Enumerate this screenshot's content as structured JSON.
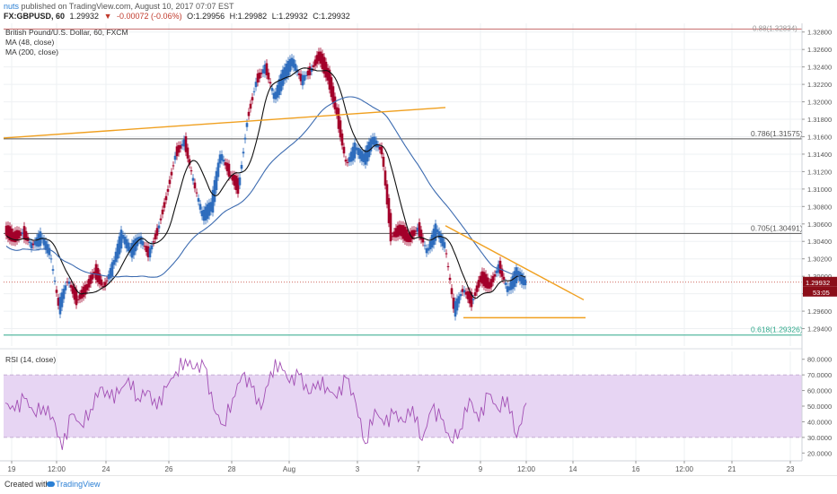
{
  "header": {
    "author": "nuts",
    "published_text": "published on TradingView.com, August 10, 2017 07:07 EST",
    "symbol": "FX:GBPUSD, 60",
    "last": "1.29932",
    "change_arrow": "▼",
    "change": "-0.00072 (-0.06%)",
    "open": "O:1.29956",
    "high": "H:1.29982",
    "low": "L:1.29932",
    "close": "C:1.29932"
  },
  "legend": {
    "title": "British Pound/U.S. Dollar, 60, FXCM",
    "ma48": "MA (48, close)",
    "ma200": "MA (200, close)",
    "rsi": "RSI (14, close)"
  },
  "footer": {
    "created": "Created with",
    "brand": "TradingView"
  },
  "colors": {
    "up": "#2f6dbd",
    "down": "#a3002a",
    "ma48": "#111111",
    "ma200": "#3c6bb0",
    "trend": "#f0a020",
    "rsi": "#a24fb4",
    "rsi_band": "#e7d5f3",
    "fib": "#555555",
    "fib618": "#2ea88a",
    "price_tag": "#8b0e19"
  },
  "chart_data": {
    "type": "line",
    "ylim": [
      1.292,
      1.329
    ],
    "yticks": [
      "1.32800",
      "1.32600",
      "1.32400",
      "1.32200",
      "1.32000",
      "1.31800",
      "1.31600",
      "1.31400",
      "1.31200",
      "1.31000",
      "1.30800",
      "1.30600",
      "1.30400",
      "1.30200",
      "1.30000",
      "1.29800",
      "1.29600",
      "1.29400"
    ],
    "x_labels": [
      "19",
      "12:00",
      "24",
      "26",
      "28",
      "Aug",
      "3",
      "7",
      "9",
      "12:00",
      "14",
      "16",
      "12:00",
      "21",
      "23"
    ],
    "price_path": [
      [
        "19",
        1.3052
      ],
      [
        "19",
        1.3043
      ],
      [
        "19",
        1.305
      ],
      [
        "19",
        1.3035
      ],
      [
        "19",
        1.3046
      ],
      [
        "19",
        1.3028
      ],
      [
        "12:00",
        1.2965
      ],
      [
        "12:00",
        1.2996
      ],
      [
        "12:00",
        1.2972
      ],
      [
        "12:00",
        1.2984
      ],
      [
        "12:00",
        1.3005
      ],
      [
        "24",
        1.2987
      ],
      [
        "24",
        1.3012
      ],
      [
        "24",
        1.3048
      ],
      [
        "24",
        1.303
      ],
      [
        "24",
        1.3045
      ],
      [
        "26",
        1.3025
      ],
      [
        "26",
        1.3052
      ],
      [
        "26",
        1.3092
      ],
      [
        "26",
        1.314
      ],
      [
        "26",
        1.3155
      ],
      [
        "26",
        1.3108
      ],
      [
        "26",
        1.307
      ],
      [
        "28",
        1.3082
      ],
      [
        "28",
        1.314
      ],
      [
        "28",
        1.3118
      ],
      [
        "28",
        1.31
      ],
      [
        "Aug",
        1.318
      ],
      [
        "Aug",
        1.3224
      ],
      [
        "Aug",
        1.324
      ],
      [
        "Aug",
        1.3205
      ],
      [
        "Aug",
        1.3232
      ],
      [
        "3",
        1.3248
      ],
      [
        "3",
        1.3225
      ],
      [
        "3",
        1.3235
      ],
      [
        "3",
        1.3252
      ],
      [
        "3",
        1.3228
      ],
      [
        "3",
        1.3185
      ],
      [
        "3",
        1.3128
      ],
      [
        "3",
        1.3148
      ],
      [
        "3",
        1.3136
      ],
      [
        "3",
        1.3158
      ],
      [
        "3",
        1.3142
      ],
      [
        "7",
        1.3045
      ],
      [
        "7",
        1.3052
      ],
      [
        "7",
        1.3042
      ],
      [
        "7",
        1.3055
      ],
      [
        "7",
        1.3028
      ],
      [
        "7",
        1.3055
      ],
      [
        "7",
        1.3035
      ],
      [
        "9",
        1.2962
      ],
      [
        "9",
        1.2985
      ],
      [
        "9",
        1.297
      ],
      [
        "9",
        1.2998
      ],
      [
        "9",
        1.2988
      ],
      [
        "9",
        1.3012
      ],
      [
        "12:00",
        1.2984
      ],
      [
        "12:00",
        1.3005
      ],
      [
        "12:00",
        1.2993
      ]
    ],
    "last_price": 1.29932,
    "price_tag": "1.29932",
    "countdown_tag": "53:05",
    "fib_levels": [
      {
        "label": "0.786(1.31575)",
        "value": 1.31575
      },
      {
        "label": "0.705(1.30491)",
        "value": 1.30491
      },
      {
        "label": "0.618(1.29326)",
        "value": 1.29326
      }
    ],
    "top_fib_label": "0.88(1.32834)",
    "rsi": {
      "ylim": [
        15,
        85
      ],
      "upper": 70,
      "lower": 30,
      "yticks": [
        "80.0000",
        "70.0000",
        "60.0000",
        "50.0000",
        "40.0000",
        "30.0000",
        "20.0000"
      ],
      "path": [
        [
          "19",
          52
        ],
        [
          "19",
          47
        ],
        [
          "19",
          55
        ],
        [
          "19",
          46
        ],
        [
          "19",
          50
        ],
        [
          "19",
          43
        ],
        [
          "12:00",
          22
        ],
        [
          "12:00",
          45
        ],
        [
          "12:00",
          38
        ],
        [
          "12:00",
          48
        ],
        [
          "24",
          62
        ],
        [
          "24",
          55
        ],
        [
          "24",
          58
        ],
        [
          "24",
          68
        ],
        [
          "24",
          55
        ],
        [
          "24",
          60
        ],
        [
          "24",
          48
        ],
        [
          "26",
          62
        ],
        [
          "26",
          72
        ],
        [
          "26",
          80
        ],
        [
          "26",
          74
        ],
        [
          "26",
          76
        ],
        [
          "26",
          48
        ],
        [
          "26",
          38
        ],
        [
          "28",
          55
        ],
        [
          "28",
          70
        ],
        [
          "28",
          62
        ],
        [
          "28",
          48
        ],
        [
          "Aug",
          72
        ],
        [
          "Aug",
          78
        ],
        [
          "Aug",
          65
        ],
        [
          "Aug",
          70
        ],
        [
          "3",
          58
        ],
        [
          "3",
          66
        ],
        [
          "3",
          62
        ],
        [
          "3",
          55
        ],
        [
          "3",
          68
        ],
        [
          "3",
          52
        ],
        [
          "3",
          26
        ],
        [
          "3",
          48
        ],
        [
          "7",
          38
        ],
        [
          "7",
          45
        ],
        [
          "7",
          40
        ],
        [
          "7",
          50
        ],
        [
          "7",
          28
        ],
        [
          "7",
          48
        ],
        [
          "7",
          42
        ],
        [
          "9",
          28
        ],
        [
          "9",
          35
        ],
        [
          "9",
          55
        ],
        [
          "9",
          40
        ],
        [
          "9",
          58
        ],
        [
          "9",
          48
        ],
        [
          "12:00",
          56
        ],
        [
          "12:00",
          30
        ],
        [
          "12:00",
          52
        ]
      ]
    }
  }
}
